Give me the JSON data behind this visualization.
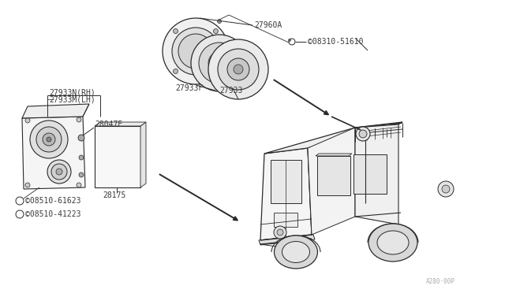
{
  "background_color": "#ffffff",
  "line_color": "#2a2a2a",
  "label_color": "#3a3a3a",
  "labels": {
    "27933N_RH": "27933N(RH)",
    "27933M_LH": "27933M(LH)",
    "28047E": "28047E",
    "08510_61623": "©08510-61623",
    "08510_41223": "©08510-41223",
    "28175": "28175",
    "27960A": "27960A",
    "08310_51610": "©08310-51610",
    "27933F": "27933F",
    "27933": "27933"
  },
  "watermark": "A280·00P",
  "fontsize": 6.5,
  "fontsize_label": 7.0
}
